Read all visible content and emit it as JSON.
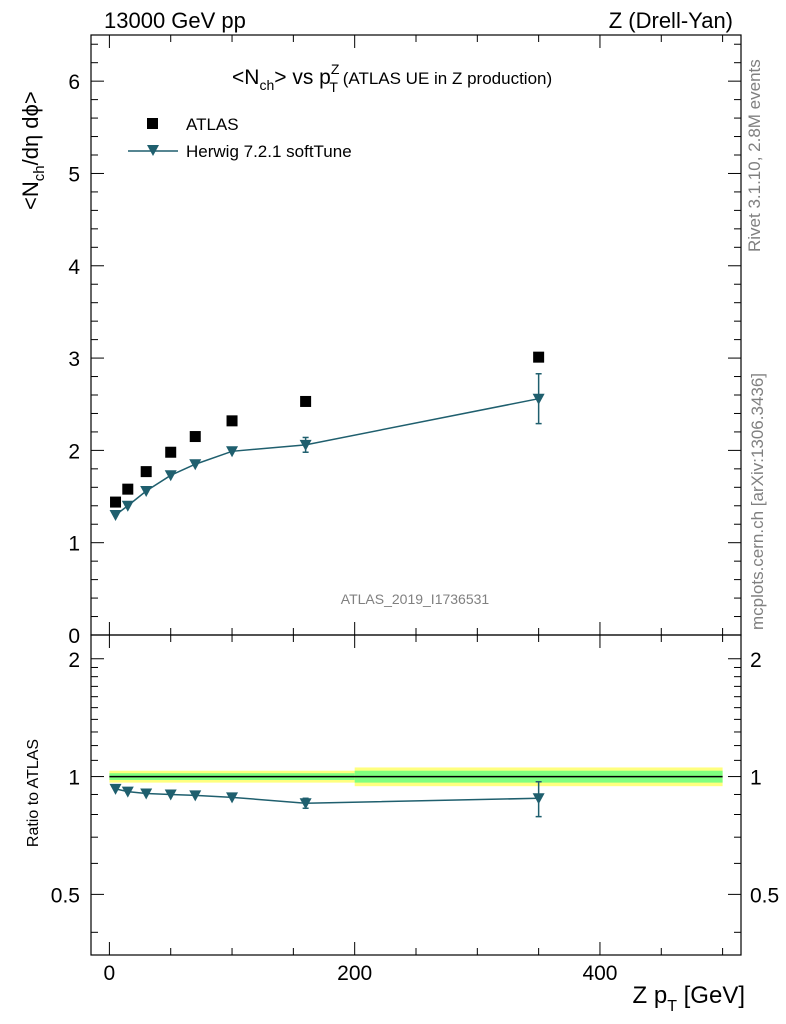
{
  "header": {
    "left": "13000 GeV pp",
    "right": "Z (Drell-Yan)"
  },
  "side_labels": {
    "rivet": "Rivet 3.1.10,  2.8M events",
    "mcplots": "mcplots.cern.ch [arXiv:1306.3436]"
  },
  "chart_data": [
    {
      "type": "scatter",
      "title": {
        "prefix": "<N",
        "sub1": "ch",
        "mid": "> vs p",
        "sup": "Z",
        "sub2": "T",
        "suffix": " (ATLAS UE in Z production)"
      },
      "ylabel": {
        "a": "<N",
        "sub": "ch",
        "b": "/dη dϕ>"
      },
      "analysis_id": "ATLAS_2019_I1736531",
      "ylim": [
        0,
        6.5
      ],
      "xlim": [
        -15,
        515
      ],
      "yticks": [
        "0",
        "1",
        "2",
        "3",
        "4",
        "5",
        "6"
      ],
      "legend": {
        "placement": "top-left",
        "entries": [
          {
            "label": "ATLAS",
            "marker": "square",
            "color": "#000000"
          },
          {
            "label": "Herwig 7.2.1 softTune",
            "marker": "triangle-down",
            "color": "#1f5f6e"
          }
        ]
      },
      "series": [
        {
          "name": "ATLAS",
          "x": [
            5,
            15,
            30,
            50,
            70,
            100,
            160,
            350
          ],
          "y": [
            1.44,
            1.58,
            1.77,
            1.98,
            2.15,
            2.32,
            2.53,
            3.01
          ]
        },
        {
          "name": "Herwig 7.2.1 softTune",
          "x": [
            5,
            15,
            30,
            50,
            70,
            100,
            160,
            350
          ],
          "y": [
            1.3,
            1.4,
            1.56,
            1.73,
            1.85,
            1.99,
            2.06,
            2.56
          ],
          "yerr": [
            0.02,
            0.02,
            0.02,
            0.02,
            0.02,
            0.03,
            0.08,
            0.27
          ]
        }
      ]
    },
    {
      "type": "line",
      "ylabel": "Ratio to ATLAS",
      "xlabel": {
        "a": "Z p",
        "sub": "T",
        "b": " [GeV]"
      },
      "ylim": [
        0.35,
        2.3
      ],
      "xlim": [
        -15,
        515
      ],
      "yticks": [
        "0.5",
        "1",
        "2"
      ],
      "xticks": [
        "0",
        "200",
        "400"
      ],
      "bands": [
        {
          "x": [
            0,
            200
          ],
          "green": [
            0.98,
            1.02
          ],
          "yellow": [
            0.965,
            1.035
          ]
        },
        {
          "x": [
            200,
            500
          ],
          "green": [
            0.965,
            1.035
          ],
          "yellow": [
            0.945,
            1.055
          ]
        }
      ],
      "colors": {
        "green": "#7fff7f",
        "yellow": "#ffff7f",
        "mc": "#1f5f6e"
      },
      "series": [
        {
          "name": "Herwig 7.2.1 softTune",
          "x": [
            5,
            15,
            30,
            50,
            70,
            100,
            160,
            350
          ],
          "y": [
            0.93,
            0.915,
            0.905,
            0.9,
            0.895,
            0.885,
            0.855,
            0.88
          ],
          "yerr": [
            0.012,
            0.012,
            0.012,
            0.012,
            0.012,
            0.013,
            0.025,
            0.09
          ]
        }
      ]
    }
  ]
}
